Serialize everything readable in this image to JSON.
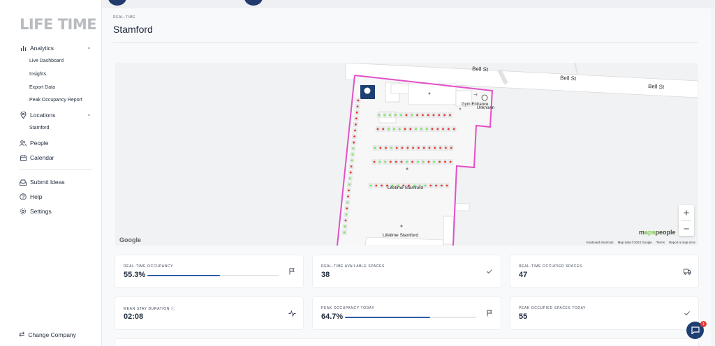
{
  "brand": {
    "logo_text": "LIFE TIME"
  },
  "sidebar": {
    "analytics": {
      "label": "Analytics",
      "icon": "bar-chart-icon"
    },
    "analytics_items": [
      "Live Dashboard",
      "Insights",
      "Export Data",
      "Peak Occupancy Report"
    ],
    "locations": {
      "label": "Locations",
      "icon": "location-pin-icon"
    },
    "location_items": [
      "Stamford"
    ],
    "people": {
      "label": "People",
      "icon": "people-icon"
    },
    "calendar": {
      "label": "Calendar",
      "icon": "calendar-icon"
    },
    "submit_ideas": {
      "label": "Submit Ideas",
      "icon": "inbox-icon"
    },
    "help": {
      "label": "Help",
      "icon": "help-circle-icon"
    },
    "settings": {
      "label": "Settings",
      "icon": "gear-icon"
    },
    "change_company": {
      "label": "Change Company",
      "icon": "swap-icon"
    }
  },
  "header": {
    "eyebrow": "REAL-TIME",
    "title": "Stamford"
  },
  "map": {
    "streets": [
      "Bell St",
      "Bell St",
      "Bell St"
    ],
    "labels": {
      "gym_entrance": "Gym Entrance",
      "unknown": "Unknown",
      "lifetime_stamford_1": "Lifetime Stamford",
      "lifetime_stamford_2": "Lifetime Stamford"
    },
    "google": "Google",
    "brand_a": "m",
    "brand_b": "aps",
    "brand_c": "people",
    "footer": [
      "Keyboard shortcuts",
      "Map data ©2024 Google",
      "Terms",
      "Report a map error"
    ],
    "zoom_in": "+",
    "zoom_out": "−",
    "colors": {
      "boundary": "#e34fc8",
      "occupied": "#e63a2e",
      "available": "#7be35a"
    }
  },
  "cards": {
    "realtime_occupancy": {
      "label": "REAL-TIME OCCUPANCY",
      "value": "55.3%",
      "progress": 0.553,
      "icon": "flag-icon"
    },
    "available_spaces": {
      "label": "REAL-TIME AVAILABLE SPACES",
      "value": "38",
      "icon": "check-icon"
    },
    "occupied_spaces": {
      "label": "REAL-TIME OCCUPIED SPACES",
      "value": "47",
      "icon": "truck-icon"
    },
    "mean_stay": {
      "label": "MEAN STAY DURATION",
      "value": "02:08",
      "icon": "activity-icon"
    },
    "peak_occupancy": {
      "label": "PEAK OCCUPANCY TODAY",
      "value": "64.7%",
      "progress": 0.647,
      "icon": "flag-icon"
    },
    "peak_occupied": {
      "label": "PEAK OCCUPIED SPACES TODAY",
      "value": "55",
      "icon": "check-icon"
    }
  },
  "chat": {
    "badge": "1"
  }
}
